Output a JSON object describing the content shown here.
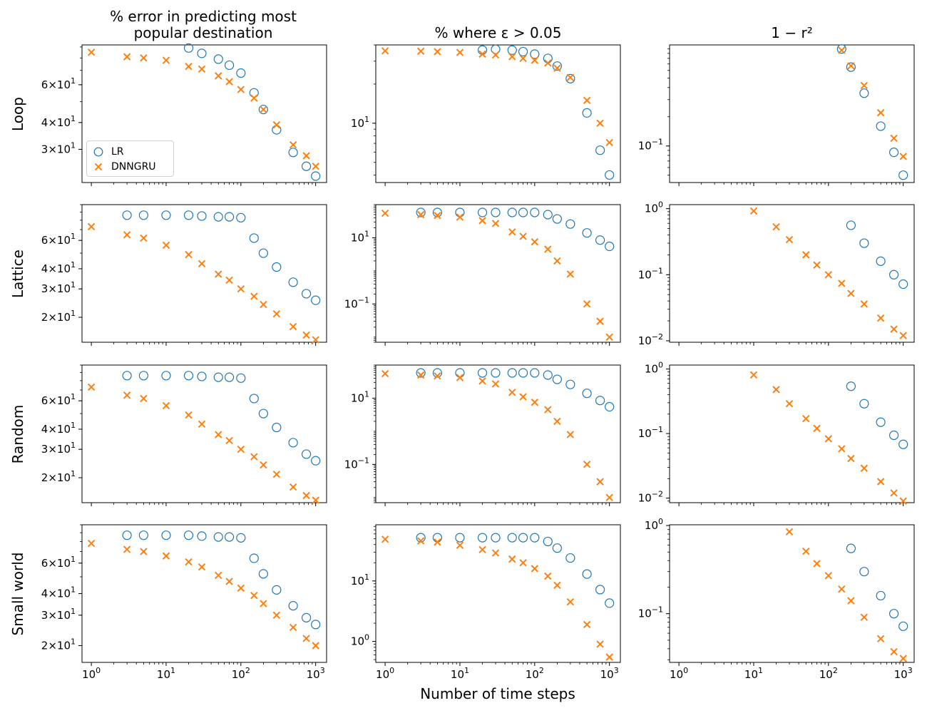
{
  "figure": {
    "column_titles": [
      "% error in predicting most\npopular destination",
      "% where ε > 0.05",
      "1 − r²"
    ],
    "row_labels": [
      "Loop",
      "Lattice",
      "Random",
      "Small world"
    ],
    "xlabel": "Number of time steps",
    "legend": {
      "lr": "LR",
      "dnngru": "DNNGRU"
    },
    "colors": {
      "lr": "#1f77b4",
      "dnngru": "#ff7f0e"
    }
  },
  "chart_data": [
    {
      "type": "scatter",
      "row": "Loop",
      "col": 0,
      "xscale": "log",
      "yscale": "log",
      "xlim": [
        0.75,
        1400
      ],
      "ylim": [
        21,
        92
      ],
      "yticks": [
        {
          "v": 60,
          "label": "6×10^1"
        },
        {
          "v": 40,
          "label": "4×10^1"
        },
        {
          "v": 30,
          "label": "3×10^1"
        }
      ],
      "series": [
        {
          "name": "LR",
          "marker": "circle",
          "x": [
            20,
            30,
            50,
            70,
            100,
            150,
            200,
            300,
            500,
            750,
            1000
          ],
          "y": [
            89,
            84,
            79,
            74,
            68,
            55,
            46,
            37,
            29,
            25,
            22.5
          ]
        },
        {
          "name": "DNNGRU",
          "marker": "x",
          "x": [
            1,
            3,
            5,
            10,
            20,
            30,
            50,
            70,
            100,
            150,
            200,
            300,
            500,
            750,
            1000
          ],
          "y": [
            85,
            81,
            80,
            78,
            73,
            71,
            66,
            62,
            57,
            52,
            46,
            39,
            31.5,
            28,
            25
          ]
        }
      ]
    },
    {
      "type": "scatter",
      "row": "Loop",
      "col": 1,
      "xscale": "log",
      "yscale": "log",
      "xlim": [
        0.75,
        1400
      ],
      "ylim": [
        3.5,
        40
      ],
      "yticks": [
        {
          "v": 10,
          "label": "10^1"
        }
      ],
      "series": [
        {
          "name": "LR",
          "marker": "circle",
          "x": [
            20,
            30,
            50,
            70,
            100,
            150,
            200,
            300,
            500,
            750,
            1000
          ],
          "y": [
            36.5,
            37,
            36.5,
            35.5,
            34,
            31.5,
            27.5,
            22,
            12,
            6.2,
            4
          ]
        },
        {
          "name": "DNNGRU",
          "marker": "x",
          "x": [
            1,
            3,
            5,
            10,
            20,
            30,
            50,
            70,
            100,
            150,
            200,
            300,
            500,
            750,
            1000
          ],
          "y": [
            36,
            35.8,
            35.5,
            35,
            34,
            33.5,
            32.5,
            31.5,
            30.5,
            29,
            26.5,
            22.5,
            15,
            10,
            7.1
          ]
        }
      ]
    },
    {
      "type": "scatter",
      "row": "Loop",
      "col": 2,
      "xscale": "log",
      "yscale": "log",
      "xlim": [
        0.75,
        1400
      ],
      "ylim": [
        0.042,
        1.1
      ],
      "yticks": [
        {
          "v": 0.1,
          "label": "10^-1"
        }
      ],
      "series": [
        {
          "name": "LR",
          "marker": "circle",
          "x": [
            150,
            200,
            300,
            500,
            750,
            1000
          ],
          "y": [
            1.0,
            0.65,
            0.35,
            0.16,
            0.086,
            0.05
          ]
        },
        {
          "name": "DNNGRU",
          "marker": "x",
          "x": [
            150,
            200,
            300,
            500,
            750,
            1000
          ],
          "y": [
            0.97,
            0.67,
            0.42,
            0.22,
            0.12,
            0.078
          ]
        }
      ]
    },
    {
      "type": "scatter",
      "row": "Lattice",
      "col": 0,
      "xscale": "log",
      "yscale": "log",
      "xlim": [
        0.75,
        1400
      ],
      "ylim": [
        14,
        100
      ],
      "yticks": [
        {
          "v": 60,
          "label": "6×10^1"
        },
        {
          "v": 40,
          "label": "4×10^1"
        },
        {
          "v": 30,
          "label": "3×10^1"
        },
        {
          "v": 20,
          "label": "2×10^1"
        }
      ],
      "series": [
        {
          "name": "LR",
          "marker": "circle",
          "x": [
            3,
            5,
            10,
            20,
            30,
            50,
            70,
            100,
            150,
            200,
            300,
            500,
            750,
            1000
          ],
          "y": [
            86,
            86,
            86,
            86,
            85,
            84,
            84,
            83,
            62,
            50,
            41,
            33,
            28,
            25.5
          ]
        },
        {
          "name": "DNNGRU",
          "marker": "x",
          "x": [
            1,
            3,
            5,
            10,
            20,
            30,
            50,
            70,
            100,
            150,
            200,
            300,
            500,
            750,
            1000
          ],
          "y": [
            73,
            65,
            62,
            56,
            49,
            43,
            37,
            34,
            30,
            27,
            24,
            21,
            17.5,
            15.5,
            14.5
          ]
        }
      ]
    },
    {
      "type": "scatter",
      "row": "Lattice",
      "col": 1,
      "xscale": "log",
      "yscale": "log",
      "xlim": [
        0.75,
        1400
      ],
      "ylim": [
        0.007,
        100
      ],
      "yticks": [
        {
          "v": 10,
          "label": "10^1"
        },
        {
          "v": 0.1,
          "label": "10^-1"
        }
      ],
      "series": [
        {
          "name": "LR",
          "marker": "circle",
          "x": [
            3,
            5,
            10,
            20,
            30,
            50,
            70,
            100,
            150,
            200,
            300,
            500,
            750,
            1000
          ],
          "y": [
            58,
            58,
            58,
            58,
            58,
            58,
            58,
            58,
            50,
            37,
            26,
            14,
            8.5,
            5.5
          ]
        },
        {
          "name": "DNNGRU",
          "marker": "x",
          "x": [
            1,
            3,
            5,
            10,
            20,
            30,
            50,
            70,
            100,
            150,
            200,
            300,
            500,
            750,
            1000
          ],
          "y": [
            55,
            50,
            47,
            42,
            33,
            27,
            15,
            11,
            7.5,
            4.5,
            2,
            0.8,
            0.1,
            0.03,
            0.01
          ]
        }
      ]
    },
    {
      "type": "scatter",
      "row": "Lattice",
      "col": 2,
      "xscale": "log",
      "yscale": "log",
      "xlim": [
        0.75,
        1400
      ],
      "ylim": [
        0.0095,
        1.15
      ],
      "yticks": [
        {
          "v": 1,
          "label": "10^0"
        },
        {
          "v": 0.1,
          "label": "10^-1"
        },
        {
          "v": 0.01,
          "label": "10^-2"
        }
      ],
      "series": [
        {
          "name": "LR",
          "marker": "circle",
          "x": [
            200,
            300,
            500,
            750,
            1000
          ],
          "y": [
            0.56,
            0.3,
            0.16,
            0.1,
            0.072
          ]
        },
        {
          "name": "DNNGRU",
          "marker": "x",
          "x": [
            10,
            20,
            30,
            50,
            70,
            100,
            150,
            200,
            300,
            500,
            750,
            1000
          ],
          "y": [
            0.92,
            0.53,
            0.34,
            0.2,
            0.14,
            0.1,
            0.074,
            0.052,
            0.036,
            0.022,
            0.015,
            0.012
          ]
        }
      ]
    },
    {
      "type": "scatter",
      "row": "Random",
      "col": 0,
      "xscale": "log",
      "yscale": "log",
      "xlim": [
        0.75,
        1400
      ],
      "ylim": [
        14,
        100
      ],
      "yticks": [
        {
          "v": 60,
          "label": "6×10^1"
        },
        {
          "v": 40,
          "label": "4×10^1"
        },
        {
          "v": 30,
          "label": "3×10^1"
        },
        {
          "v": 20,
          "label": "2×10^1"
        }
      ],
      "series": [
        {
          "name": "LR",
          "marker": "circle",
          "x": [
            3,
            5,
            10,
            20,
            30,
            50,
            70,
            100,
            150,
            200,
            300,
            500,
            750,
            1000
          ],
          "y": [
            86,
            86,
            86,
            86,
            85,
            84,
            84,
            83,
            62,
            50,
            41,
            33,
            28,
            25.5
          ]
        },
        {
          "name": "DNNGRU",
          "marker": "x",
          "x": [
            1,
            3,
            5,
            10,
            20,
            30,
            50,
            70,
            100,
            150,
            200,
            300,
            500,
            750,
            1000
          ],
          "y": [
            73,
            65,
            62,
            56,
            49,
            43,
            37,
            34,
            30,
            27,
            24,
            21,
            17.5,
            15.5,
            14.5
          ]
        }
      ]
    },
    {
      "type": "scatter",
      "row": "Random",
      "col": 1,
      "xscale": "log",
      "yscale": "log",
      "xlim": [
        0.75,
        1400
      ],
      "ylim": [
        0.007,
        100
      ],
      "yticks": [
        {
          "v": 10,
          "label": "10^1"
        },
        {
          "v": 0.1,
          "label": "10^-1"
        }
      ],
      "series": [
        {
          "name": "LR",
          "marker": "circle",
          "x": [
            3,
            5,
            10,
            20,
            30,
            50,
            70,
            100,
            150,
            200,
            300,
            500,
            750,
            1000
          ],
          "y": [
            58,
            58,
            58,
            58,
            58,
            58,
            58,
            58,
            50,
            37,
            26,
            14,
            8.5,
            5.5
          ]
        },
        {
          "name": "DNNGRU",
          "marker": "x",
          "x": [
            1,
            3,
            5,
            10,
            20,
            30,
            50,
            70,
            100,
            150,
            200,
            300,
            500,
            750,
            1000
          ],
          "y": [
            55,
            50,
            47,
            42,
            33,
            27,
            15,
            11,
            7.5,
            4.5,
            2,
            0.8,
            0.1,
            0.03,
            0.01
          ]
        }
      ]
    },
    {
      "type": "scatter",
      "row": "Random",
      "col": 2,
      "xscale": "log",
      "yscale": "log",
      "xlim": [
        0.75,
        1400
      ],
      "ylim": [
        0.0085,
        1.15
      ],
      "yticks": [
        {
          "v": 1,
          "label": "10^0"
        },
        {
          "v": 0.1,
          "label": "10^-1"
        },
        {
          "v": 0.01,
          "label": "10^-2"
        }
      ],
      "series": [
        {
          "name": "LR",
          "marker": "circle",
          "x": [
            200,
            300,
            500,
            750,
            1000
          ],
          "y": [
            0.54,
            0.29,
            0.15,
            0.094,
            0.068
          ]
        },
        {
          "name": "DNNGRU",
          "marker": "x",
          "x": [
            10,
            20,
            30,
            50,
            70,
            100,
            150,
            200,
            300,
            500,
            750,
            1000
          ],
          "y": [
            0.81,
            0.48,
            0.29,
            0.17,
            0.12,
            0.083,
            0.058,
            0.041,
            0.029,
            0.018,
            0.012,
            0.009
          ]
        }
      ]
    },
    {
      "type": "scatter",
      "row": "Small world",
      "col": 0,
      "xscale": "log",
      "yscale": "log",
      "xlim": [
        0.75,
        1400
      ],
      "ylim": [
        16,
        100
      ],
      "yticks": [
        {
          "v": 60,
          "label": "6×10^1"
        },
        {
          "v": 40,
          "label": "4×10^1"
        },
        {
          "v": 30,
          "label": "3×10^1"
        },
        {
          "v": 20,
          "label": "2×10^1"
        }
      ],
      "series": [
        {
          "name": "LR",
          "marker": "circle",
          "x": [
            3,
            5,
            10,
            20,
            30,
            50,
            70,
            100,
            150,
            200,
            300,
            500,
            750,
            1000
          ],
          "y": [
            87,
            87,
            87,
            87,
            86,
            85,
            85,
            84,
            64,
            52,
            42,
            34,
            29,
            26.5
          ]
        },
        {
          "name": "DNNGRU",
          "marker": "x",
          "x": [
            1,
            3,
            5,
            10,
            20,
            30,
            50,
            70,
            100,
            150,
            200,
            300,
            500,
            750,
            1000
          ],
          "y": [
            78,
            72,
            70,
            66,
            61,
            57,
            51,
            47,
            43,
            39,
            35,
            30,
            25.5,
            22,
            20
          ]
        }
      ]
    },
    {
      "type": "scatter",
      "row": "Small world",
      "col": 1,
      "xscale": "log",
      "yscale": "log",
      "xlim": [
        0.75,
        1400
      ],
      "ylim": [
        0.45,
        85
      ],
      "yticks": [
        {
          "v": 10,
          "label": "10^1"
        },
        {
          "v": 1,
          "label": "10^0"
        }
      ],
      "series": [
        {
          "name": "LR",
          "marker": "circle",
          "x": [
            3,
            5,
            10,
            20,
            30,
            50,
            70,
            100,
            150,
            200,
            300,
            500,
            750,
            1000
          ],
          "y": [
            52,
            52,
            52,
            52,
            52,
            52,
            52,
            52,
            45,
            35,
            24,
            13,
            7.2,
            4.3
          ]
        },
        {
          "name": "DNNGRU",
          "marker": "x",
          "x": [
            1,
            3,
            5,
            10,
            20,
            30,
            50,
            70,
            100,
            150,
            200,
            300,
            500,
            750,
            1000
          ],
          "y": [
            49,
            46,
            44,
            39,
            33,
            29,
            23,
            20,
            16,
            12,
            8.5,
            4.5,
            1.9,
            0.9,
            0.55
          ]
        }
      ]
    },
    {
      "type": "scatter",
      "row": "Small world",
      "col": 2,
      "xscale": "log",
      "yscale": "log",
      "xlim": [
        0.75,
        1400
      ],
      "ylim": [
        0.028,
        1.02
      ],
      "yticks": [
        {
          "v": 1,
          "label": "10^0"
        },
        {
          "v": 0.1,
          "label": "10^-1"
        }
      ],
      "series": [
        {
          "name": "LR",
          "marker": "circle",
          "x": [
            200,
            300,
            500,
            750,
            1000
          ],
          "y": [
            0.55,
            0.3,
            0.16,
            0.1,
            0.072
          ]
        },
        {
          "name": "DNNGRU",
          "marker": "x",
          "x": [
            30,
            50,
            70,
            100,
            150,
            200,
            300,
            500,
            750,
            1000
          ],
          "y": [
            0.85,
            0.51,
            0.37,
            0.27,
            0.19,
            0.14,
            0.091,
            0.052,
            0.037,
            0.031
          ]
        }
      ]
    }
  ]
}
